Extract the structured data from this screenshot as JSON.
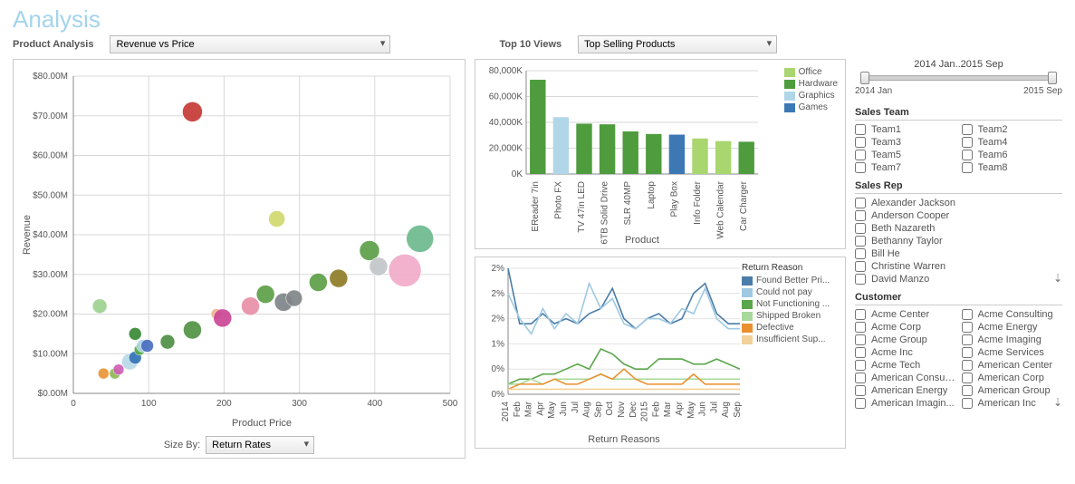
{
  "title": "Analysis",
  "controls": {
    "product_analysis_label": "Product Analysis",
    "product_analysis_value": "Revenue vs Price",
    "top10_label": "Top 10 Views",
    "top10_value": "Top Selling Products"
  },
  "date_slider": {
    "range_text": "2014 Jan..2015 Sep",
    "left_label": "2014 Jan",
    "right_label": "2015 Sep"
  },
  "scatter": {
    "x_label": "Product Price",
    "y_label": "Revenue",
    "x_min": 0,
    "x_max": 500,
    "x_step": 100,
    "y_min": 0,
    "y_max": 80,
    "y_step": 10,
    "y_fmt_prefix": "$",
    "y_fmt_suffix": ".00M",
    "points": [
      {
        "x": 40,
        "y": 5,
        "r": 6,
        "color": "#e99537"
      },
      {
        "x": 55,
        "y": 5,
        "r": 6,
        "color": "#8fb955"
      },
      {
        "x": 60,
        "y": 6,
        "r": 6,
        "color": "#ce60b5"
      },
      {
        "x": 75,
        "y": 8,
        "r": 9,
        "color": "#b8d8e7"
      },
      {
        "x": 82,
        "y": 9,
        "r": 7,
        "color": "#3473b6"
      },
      {
        "x": 88,
        "y": 11,
        "r": 6,
        "color": "#4eaa43"
      },
      {
        "x": 92,
        "y": 12,
        "r": 7,
        "color": "#aed4e6"
      },
      {
        "x": 98,
        "y": 12,
        "r": 7,
        "color": "#4a6fbf"
      },
      {
        "x": 82,
        "y": 15,
        "r": 7,
        "color": "#3b8a36"
      },
      {
        "x": 125,
        "y": 13,
        "r": 8,
        "color": "#4f8e45"
      },
      {
        "x": 35,
        "y": 22,
        "r": 8,
        "color": "#9dd18f"
      },
      {
        "x": 158,
        "y": 16,
        "r": 10,
        "color": "#529344"
      },
      {
        "x": 158,
        "y": 71,
        "r": 11,
        "color": "#c73a35"
      },
      {
        "x": 190,
        "y": 20,
        "r": 6,
        "color": "#f3b083"
      },
      {
        "x": 198,
        "y": 19,
        "r": 10,
        "color": "#cb4696"
      },
      {
        "x": 235,
        "y": 22,
        "r": 10,
        "color": "#e88fa7"
      },
      {
        "x": 255,
        "y": 25,
        "r": 10,
        "color": "#5c9e46"
      },
      {
        "x": 279,
        "y": 23,
        "r": 10,
        "color": "#7e8488"
      },
      {
        "x": 293,
        "y": 24,
        "r": 9,
        "color": "#808589"
      },
      {
        "x": 270,
        "y": 44,
        "r": 9,
        "color": "#d0d86e"
      },
      {
        "x": 325,
        "y": 28,
        "r": 10,
        "color": "#5c9e46"
      },
      {
        "x": 352,
        "y": 29,
        "r": 10,
        "color": "#8f7c27"
      },
      {
        "x": 393,
        "y": 36,
        "r": 11,
        "color": "#5c9e46"
      },
      {
        "x": 405,
        "y": 32,
        "r": 10,
        "color": "#c2c5c8"
      },
      {
        "x": 440,
        "y": 31,
        "r": 18,
        "color": "#f1aac8"
      },
      {
        "x": 460,
        "y": 39,
        "r": 15,
        "color": "#6cba8e"
      }
    ],
    "sizeby_label": "Size By:",
    "sizeby_value": "Return Rates"
  },
  "barchart": {
    "y_label": "",
    "x_axis_title": "Product",
    "y_ticks": [
      "0K",
      "20,000K",
      "40,000K",
      "60,000K",
      "80,000K"
    ],
    "y_max": 80000,
    "series_legend": [
      {
        "label": "Office",
        "color": "#a9d66e"
      },
      {
        "label": "Hardware",
        "color": "#4e9c3d"
      },
      {
        "label": "Graphics",
        "color": "#b1d6e8"
      },
      {
        "label": "Games",
        "color": "#3d78b5"
      }
    ],
    "bars": [
      {
        "label": "EReader 7in",
        "value": 73000,
        "color": "#4e9c3d"
      },
      {
        "label": "Photo FX",
        "value": 44000,
        "color": "#b1d6e8"
      },
      {
        "label": "TV 47in LED",
        "value": 39000,
        "color": "#4e9c3d"
      },
      {
        "label": "6TB Solid Drive",
        "value": 38500,
        "color": "#4e9c3d"
      },
      {
        "label": "SLR 40MP",
        "value": 33000,
        "color": "#4e9c3d"
      },
      {
        "label": "Laptop",
        "value": 31000,
        "color": "#4e9c3d"
      },
      {
        "label": "Play Box",
        "value": 30500,
        "color": "#3d78b5"
      },
      {
        "label": "Info Folder",
        "value": 27500,
        "color": "#a9d66e"
      },
      {
        "label": "Web Calendar",
        "value": 25500,
        "color": "#a9d66e"
      },
      {
        "label": "Car Charger",
        "value": 25000,
        "color": "#4e9c3d"
      }
    ]
  },
  "linechart": {
    "title_legend": "Return Reason",
    "x_axis_title": "Return Reasons",
    "y_ticks": [
      "0%",
      "0%",
      "1%",
      "2%",
      "2%",
      "2%"
    ],
    "y_values": [
      0,
      0.5,
      1,
      1.5,
      2,
      2.5
    ],
    "x_labels": [
      "2014",
      "Feb",
      "Mar",
      "Apr",
      "May",
      "Jun",
      "Jul",
      "Aug",
      "Sep",
      "Oct",
      "Nov",
      "Dec",
      "2015",
      "Feb",
      "Mar",
      "Apr",
      "May",
      "Jun",
      "Jul",
      "Aug",
      "Sep"
    ],
    "series": [
      {
        "name": "Found Better Pri...",
        "color": "#4a7da9",
        "values": [
          2.5,
          1.4,
          1.4,
          1.6,
          1.4,
          1.5,
          1.4,
          1.6,
          1.7,
          2.1,
          1.5,
          1.3,
          1.5,
          1.6,
          1.4,
          1.5,
          2.0,
          2.2,
          1.6,
          1.4,
          1.4
        ]
      },
      {
        "name": "Could not pay",
        "color": "#9fc9e3",
        "values": [
          2.0,
          1.5,
          1.2,
          1.7,
          1.3,
          1.6,
          1.4,
          2.2,
          1.7,
          1.9,
          1.4,
          1.3,
          1.5,
          1.5,
          1.4,
          1.7,
          1.6,
          2.1,
          1.5,
          1.3,
          1.3
        ]
      },
      {
        "name": "Not Functioning ...",
        "color": "#5aa64b",
        "values": [
          0.2,
          0.3,
          0.3,
          0.4,
          0.4,
          0.5,
          0.6,
          0.5,
          0.9,
          0.8,
          0.6,
          0.5,
          0.5,
          0.7,
          0.7,
          0.7,
          0.6,
          0.6,
          0.7,
          0.6,
          0.5
        ]
      },
      {
        "name": "Shipped Broken",
        "color": "#a8d89a",
        "values": [
          0.2,
          0.2,
          0.3,
          0.2,
          0.3,
          0.3,
          0.3,
          0.3,
          0.4,
          0.3,
          0.3,
          0.3,
          0.3,
          0.3,
          0.3,
          0.3,
          0.3,
          0.3,
          0.3,
          0.3,
          0.3
        ]
      },
      {
        "name": "Defective",
        "color": "#e9902f",
        "values": [
          0.1,
          0.2,
          0.2,
          0.2,
          0.3,
          0.2,
          0.2,
          0.3,
          0.4,
          0.3,
          0.5,
          0.3,
          0.2,
          0.2,
          0.2,
          0.2,
          0.4,
          0.2,
          0.2,
          0.2,
          0.2
        ]
      },
      {
        "name": "Insufficient Sup...",
        "color": "#f2d19a",
        "values": [
          0.1,
          0.1,
          0.1,
          0.1,
          0.1,
          0.1,
          0.1,
          0.1,
          0.1,
          0.1,
          0.1,
          0.1,
          0.1,
          0.1,
          0.1,
          0.1,
          0.1,
          0.1,
          0.1,
          0.1,
          0.1
        ]
      }
    ]
  },
  "filters": {
    "sales_team": {
      "title": "Sales Team",
      "items": [
        "Team1",
        "Team2",
        "Team3",
        "Team4",
        "Team5",
        "Team6",
        "Team7",
        "Team8"
      ],
      "two_col": true
    },
    "sales_rep": {
      "title": "Sales Rep",
      "items": [
        "Alexander Jackson",
        "Anderson Cooper",
        "Beth Nazareth",
        "Bethanny Taylor",
        "Bill He",
        "Christine Warren",
        "David Manzo"
      ],
      "two_col": false,
      "overflow": true
    },
    "customer": {
      "title": "Customer",
      "items": [
        "Acme Center",
        "Acme Consulting",
        "Acme Corp",
        "Acme Energy",
        "Acme Group",
        "Acme Imaging",
        "Acme Inc",
        "Acme Services",
        "Acme Tech",
        "American Center",
        "American Consult...",
        "American Corp",
        "American Energy",
        "American Group",
        "American Imagin...",
        "American Inc"
      ],
      "two_col": true,
      "overflow": true
    }
  }
}
